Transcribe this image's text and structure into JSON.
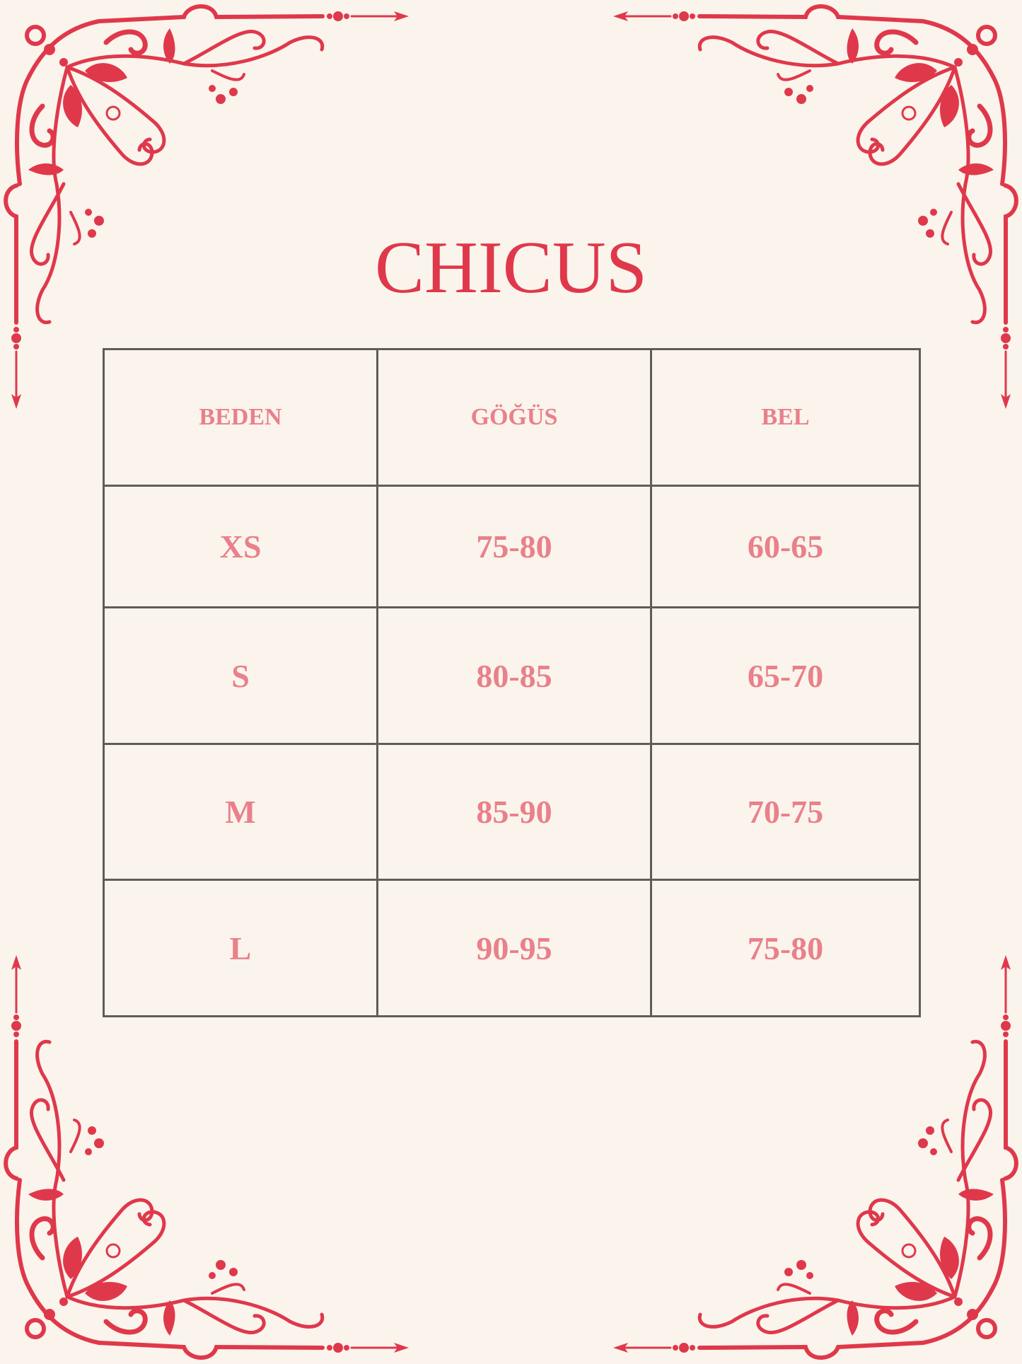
{
  "title": "CHICUS",
  "colors": {
    "background": "#faf4ec",
    "title": "#e0384b",
    "ornament": "#e0384b",
    "cell_text": "#e9808a",
    "grid": "#5f5d58"
  },
  "ornament_icon": "floral-corner-ornament-with-arrow",
  "table": {
    "headers": [
      "BEDEN",
      "GÖĞÜS",
      "BEL"
    ],
    "rows": [
      [
        "XS",
        "75-80",
        "60-65"
      ],
      [
        "S",
        "80-85",
        "65-70"
      ],
      [
        "M",
        "85-90",
        "70-75"
      ],
      [
        "L",
        "90-95",
        "75-80"
      ]
    ]
  }
}
